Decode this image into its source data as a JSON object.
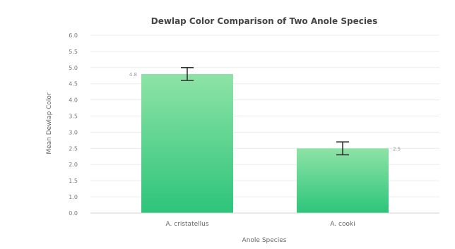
{
  "chart_data": {
    "type": "bar",
    "title": "Dewlap Color Comparison of Two Anole Species",
    "xlabel": "Anole Species",
    "ylabel": "Mean Dewlap Color",
    "categories": [
      "A. cristatellus",
      "A. cooki"
    ],
    "values": [
      4.8,
      2.5
    ],
    "error": [
      0.2,
      0.2
    ],
    "data_labels": [
      "4.8",
      "2.5"
    ],
    "ylim": [
      0,
      6
    ],
    "yticks": [
      "0.0",
      "1.0",
      "1.5",
      "2.0",
      "2.5",
      "3.0",
      "3.5",
      "4.0",
      "4.5",
      "5.0",
      "5.5",
      "6.0"
    ],
    "grid": true,
    "legend": "none",
    "colors": {
      "bar_top": "#8ee3a6",
      "bar_bottom": "#2dc47a",
      "error_bar": "#333333"
    }
  }
}
